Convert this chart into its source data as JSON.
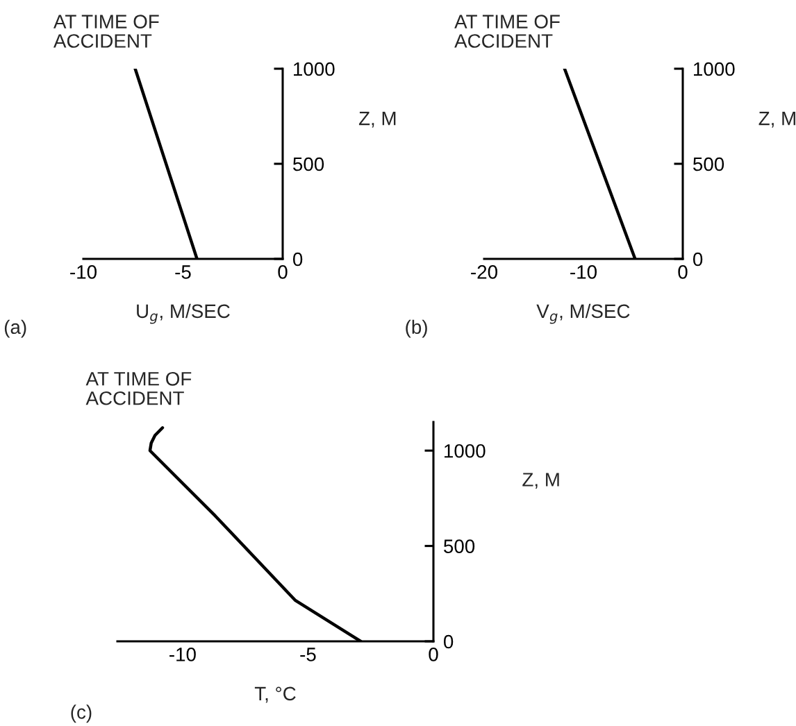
{
  "chart_data": [
    {
      "type": "line",
      "title": "AT TIME OF\nACCIDENT",
      "xlabel": "U$_{g}$, M/SEC",
      "ylabel": "Z, M",
      "annotations": [
        "(a)"
      ],
      "series": [
        {
          "color": "#000000",
          "x": [
            -4.3,
            -7.4
          ],
          "values": [
            0,
            1000
          ]
        }
      ],
      "xlim": [
        -10,
        0
      ],
      "xticks": [
        -10,
        -5,
        0
      ],
      "ylim": [
        0,
        1000
      ],
      "yticks": [
        0,
        500,
        1000
      ],
      "grid": false,
      "legend": false
    },
    {
      "type": "line",
      "title": "AT TIME OF\nACCIDENT",
      "xlabel": "V$_{g}$, M/SEC",
      "ylabel": "Z, M",
      "annotations": [
        "(b)"
      ],
      "series": [
        {
          "color": "#000000",
          "x": [
            -4.8,
            -11.9
          ],
          "values": [
            0,
            1000
          ]
        }
      ],
      "xlim": [
        -20,
        0
      ],
      "xticks": [
        -20,
        -10,
        0
      ],
      "ylim": [
        0,
        1000
      ],
      "yticks": [
        0,
        500,
        1000
      ],
      "grid": false,
      "legend": false
    },
    {
      "type": "line",
      "title": "AT TIME OF\nACCIDENT",
      "xlabel": "T, °C",
      "ylabel": "Z, M",
      "annotations": [
        "(c)"
      ],
      "series": [
        {
          "color": "#000000",
          "x": [
            -2.9,
            -5.5,
            -8.7,
            -11.3,
            -11.25,
            -11.1,
            -10.8
          ],
          "values": [
            0,
            214,
            658,
            1000,
            1040,
            1080,
            1120
          ]
        }
      ],
      "xlim": [
        -12.6,
        0
      ],
      "xticks": [
        -10,
        -5,
        0
      ],
      "ylim": [
        0,
        1150
      ],
      "yticks": [
        0,
        500,
        1000
      ],
      "grid": false,
      "legend": false
    }
  ]
}
